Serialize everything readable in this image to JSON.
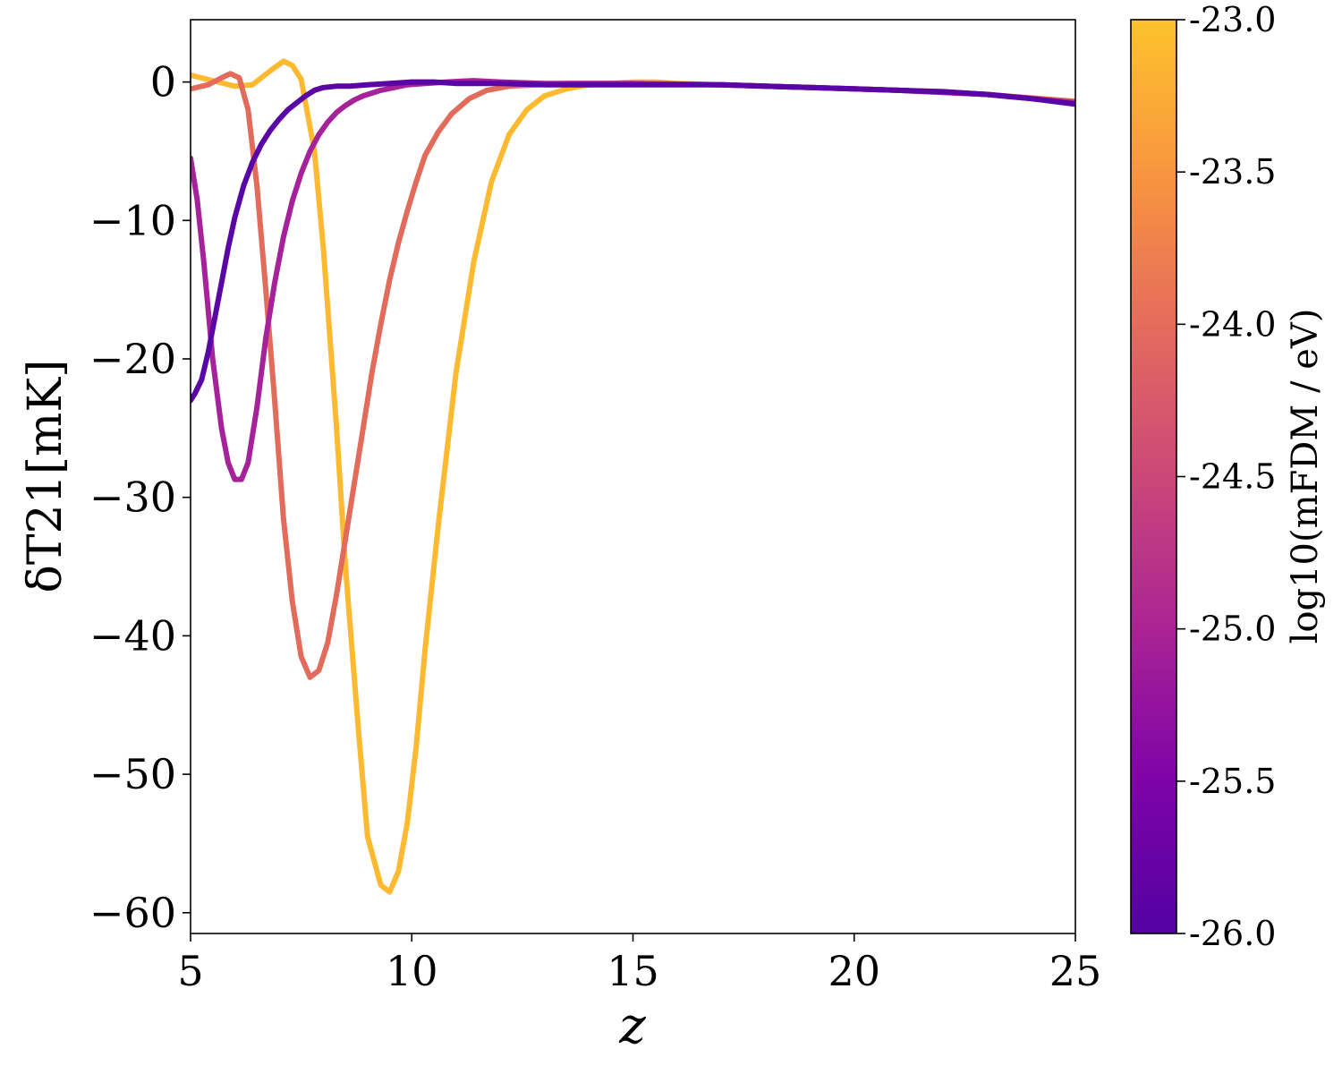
{
  "chart_data": {
    "type": "line",
    "xlabel": "z",
    "ylabel": "δT21[mK]",
    "xlim": [
      5,
      25
    ],
    "ylim": [
      -61.5,
      4.5
    ],
    "x_ticks": [
      5,
      10,
      15,
      20,
      25
    ],
    "y_ticks": [
      0,
      -10,
      -20,
      -30,
      -40,
      -50,
      -60
    ],
    "x_tick_labels": [
      "5",
      "10",
      "15",
      "20",
      "25"
    ],
    "y_tick_labels": [
      "0",
      "−10",
      "−20",
      "−30",
      "−40",
      "−50",
      "−60"
    ],
    "grid": false,
    "colorbar": {
      "label": "log10(mFDM / eV)",
      "range": [
        -26.0,
        -23.0
      ],
      "ticks": [
        "-23.0",
        "-23.5",
        "-24.0",
        "-24.5",
        "-25.0",
        "-25.5",
        "-26.0"
      ],
      "colormap": "plasma",
      "colors": [
        "#fcc72f",
        "#f6903f",
        "#e26b5b",
        "#c03e7c",
        "#9d1a9e",
        "#7804a6",
        "#5302a3"
      ]
    },
    "series": [
      {
        "color": "#fdb92f",
        "x": [
          5.0,
          5.5,
          6.0,
          6.4,
          6.8,
          7.1,
          7.3,
          7.5,
          7.8,
          8.0,
          8.3,
          8.5,
          8.8,
          9.0,
          9.3,
          9.5,
          9.7,
          9.9,
          10.1,
          10.3,
          10.6,
          11.0,
          11.4,
          11.8,
          12.2,
          12.6,
          13.0,
          13.5,
          14.0,
          14.5,
          15.0,
          15.5,
          16.0,
          17.0,
          18.0,
          19.0,
          20.0,
          21.0,
          22.0,
          23.0,
          24.0,
          25.0
        ],
        "y": [
          0.5,
          0.1,
          -0.3,
          -0.2,
          0.8,
          1.5,
          1.2,
          0.2,
          -5.0,
          -12.0,
          -25.0,
          -35.0,
          -47.0,
          -54.5,
          -58.0,
          -58.5,
          -57.0,
          -53.5,
          -48.0,
          -41.0,
          -32.0,
          -21.0,
          -13.0,
          -7.2,
          -3.8,
          -2.0,
          -1.0,
          -0.5,
          -0.2,
          -0.1,
          0.0,
          0.0,
          -0.1,
          -0.2,
          -0.3,
          -0.4,
          -0.5,
          -0.6,
          -0.7,
          -0.9,
          -1.2,
          -1.4
        ]
      },
      {
        "color": "#e26b5b",
        "x": [
          5.0,
          5.4,
          5.7,
          5.9,
          6.1,
          6.3,
          6.5,
          6.7,
          6.9,
          7.1,
          7.3,
          7.5,
          7.7,
          7.9,
          8.1,
          8.3,
          8.5,
          8.7,
          8.9,
          9.1,
          9.3,
          9.5,
          9.7,
          9.9,
          10.1,
          10.3,
          10.6,
          10.9,
          11.3,
          11.7,
          12.2,
          12.8,
          13.5,
          15.0,
          17.0,
          19.0,
          21.0,
          23.0,
          25.0
        ],
        "y": [
          -0.5,
          -0.2,
          0.3,
          0.6,
          0.3,
          -2.0,
          -7.5,
          -15.0,
          -23.0,
          -31.5,
          -37.5,
          -41.5,
          -43.0,
          -42.5,
          -40.5,
          -37.0,
          -33.0,
          -29.0,
          -25.0,
          -21.0,
          -17.5,
          -14.3,
          -11.6,
          -9.3,
          -7.2,
          -5.3,
          -3.6,
          -2.3,
          -1.2,
          -0.6,
          -0.3,
          -0.2,
          -0.1,
          -0.1,
          -0.2,
          -0.4,
          -0.6,
          -0.9,
          -1.4
        ]
      },
      {
        "color": "#a5229b",
        "x": [
          5.0,
          5.15,
          5.3,
          5.5,
          5.7,
          5.85,
          6.0,
          6.15,
          6.3,
          6.5,
          6.7,
          6.9,
          7.1,
          7.3,
          7.5,
          7.7,
          7.9,
          8.1,
          8.3,
          8.5,
          8.7,
          8.9,
          9.1,
          9.3,
          9.6,
          9.9,
          10.3,
          10.8,
          11.4,
          12.0,
          13.0,
          15.0,
          17.0,
          19.0,
          21.0,
          23.0,
          25.0
        ],
        "y": [
          -5.5,
          -8.5,
          -13.0,
          -20.0,
          -25.0,
          -27.5,
          -28.7,
          -28.7,
          -27.5,
          -23.5,
          -18.5,
          -14.5,
          -11.2,
          -8.6,
          -6.6,
          -5.0,
          -3.8,
          -2.9,
          -2.2,
          -1.7,
          -1.3,
          -1.0,
          -0.8,
          -0.6,
          -0.4,
          -0.2,
          -0.1,
          0.0,
          0.1,
          0.0,
          -0.1,
          -0.1,
          -0.2,
          -0.4,
          -0.6,
          -0.9,
          -1.5
        ]
      },
      {
        "color": "#5a05a5",
        "x": [
          5.0,
          5.1,
          5.25,
          5.4,
          5.55,
          5.7,
          5.85,
          6.0,
          6.2,
          6.4,
          6.6,
          6.8,
          7.0,
          7.2,
          7.4,
          7.6,
          7.8,
          8.0,
          8.3,
          8.6,
          9.0,
          9.5,
          10.0,
          10.5,
          11.0,
          12.0,
          13.0,
          14.0,
          15.0,
          16.0,
          17.0,
          18.0,
          19.0,
          20.0,
          21.0,
          22.0,
          23.0,
          24.0,
          25.0
        ],
        "y": [
          -23.0,
          -22.5,
          -21.5,
          -19.5,
          -17.0,
          -14.5,
          -12.0,
          -9.8,
          -7.5,
          -5.8,
          -4.5,
          -3.5,
          -2.7,
          -2.0,
          -1.5,
          -1.0,
          -0.6,
          -0.4,
          -0.3,
          -0.3,
          -0.2,
          -0.1,
          0.0,
          0.0,
          -0.1,
          -0.1,
          -0.2,
          -0.2,
          -0.2,
          -0.2,
          -0.2,
          -0.3,
          -0.4,
          -0.5,
          -0.6,
          -0.7,
          -0.9,
          -1.2,
          -1.6
        ]
      }
    ]
  }
}
